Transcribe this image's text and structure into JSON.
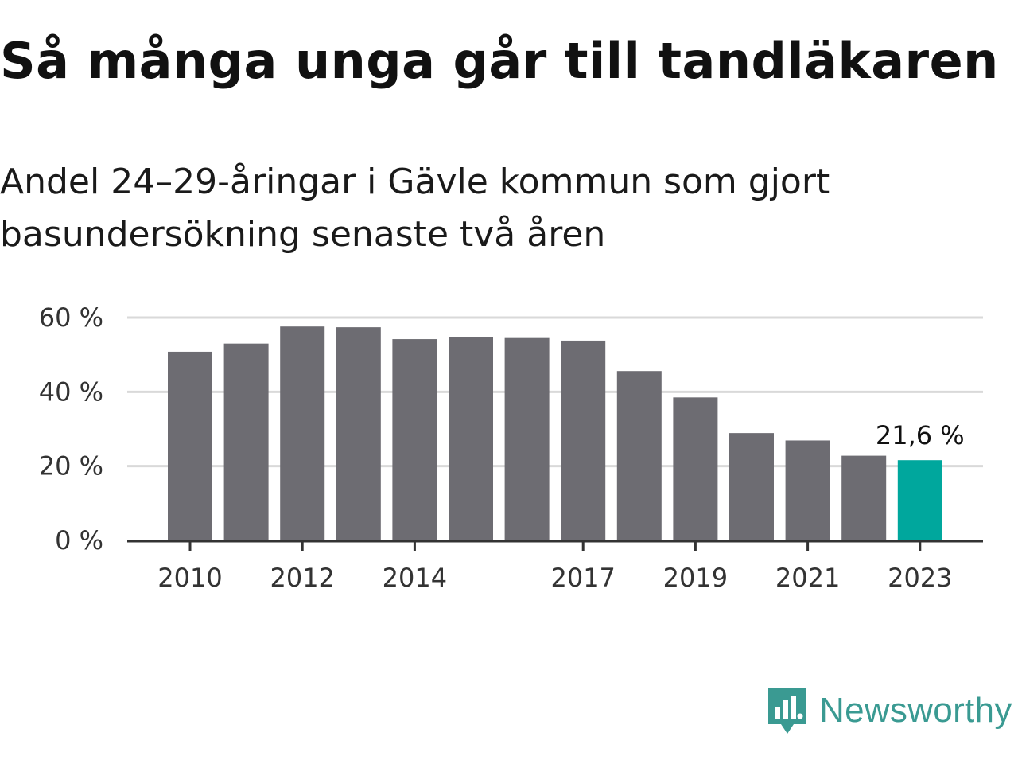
{
  "title": "Så många unga går till tandläkaren",
  "subtitle": "Andel 24–29-åringar i Gävle kommun som gjort basundersökning senaste två åren",
  "brand": {
    "name": "Newsworthy",
    "color": "#3a9a92"
  },
  "colors": {
    "bar": "#6d6c72",
    "highlight": "#00a79d",
    "grid": "#d9d9d9",
    "axis": "#333333"
  },
  "chart_data": {
    "type": "bar",
    "categories": [
      "2010",
      "2011",
      "2012",
      "2013",
      "2014",
      "2015",
      "2016",
      "2017",
      "2018",
      "2019",
      "2020",
      "2021",
      "2022",
      "2023"
    ],
    "values": [
      50.8,
      53.0,
      57.6,
      57.4,
      54.2,
      54.8,
      54.5,
      53.8,
      45.6,
      38.5,
      28.9,
      26.9,
      22.8,
      21.6
    ],
    "y_ticks": [
      0,
      20,
      40,
      60
    ],
    "y_tick_labels": [
      "0 %",
      "20 %",
      "40 %",
      "60 %"
    ],
    "x_tick_labels": [
      "2010",
      "2012",
      "2014",
      "2017",
      "2019",
      "2021",
      "2023"
    ],
    "ylim": [
      0,
      60
    ],
    "highlight": {
      "category": "2023",
      "label": "21,6 %"
    },
    "grid": true,
    "xlabel": "",
    "ylabel": ""
  }
}
